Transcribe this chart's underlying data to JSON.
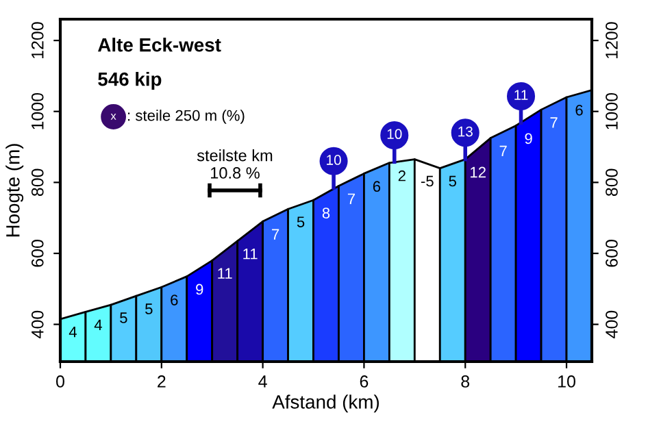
{
  "chart_data": {
    "type": "area",
    "title": "Alte Eck-west",
    "subtitle": "546 kip",
    "xlabel": "Afstand (km)",
    "ylabel": "Hoogte (m)",
    "series": [
      {
        "x": [
          0,
          0.5
        ],
        "values": [
          415,
          435
        ],
        "color": "#66ffff"
      },
      {
        "x": [
          0.5,
          1
        ],
        "values": [
          435,
          455
        ],
        "color": "#62fcfe"
      },
      {
        "x": [
          1,
          1.5
        ],
        "values": [
          455,
          480
        ],
        "color": "#55ccff"
      },
      {
        "x": [
          1.5,
          2
        ],
        "values": [
          480,
          505
        ],
        "color": "#52c8fc"
      },
      {
        "x": [
          2,
          2.5
        ],
        "values": [
          505,
          535
        ],
        "color": "#3d96ff"
      },
      {
        "x": [
          2.5,
          3
        ],
        "values": [
          535,
          580
        ],
        "color": "#0000ff"
      },
      {
        "x": [
          3,
          3.5
        ],
        "values": [
          580,
          635
        ],
        "color": "#22109a"
      },
      {
        "x": [
          3.5,
          4
        ],
        "values": [
          635,
          690
        ],
        "color": "#1a0aaa"
      },
      {
        "x": [
          4,
          4.5
        ],
        "values": [
          690,
          725
        ],
        "color": "#2b64ff"
      },
      {
        "x": [
          4.5,
          5
        ],
        "values": [
          725,
          750
        ],
        "color": "#55ccff"
      },
      {
        "x": [
          5,
          5.5
        ],
        "values": [
          750,
          790
        ],
        "color": "#1a3cff"
      },
      {
        "x": [
          5.5,
          6
        ],
        "values": [
          790,
          825
        ],
        "color": "#2b64ff"
      },
      {
        "x": [
          6,
          6.5
        ],
        "values": [
          825,
          855
        ],
        "color": "#3d96ff"
      },
      {
        "x": [
          6.5,
          7
        ],
        "values": [
          855,
          865
        ],
        "color": "#b0ffff"
      },
      {
        "x": [
          7,
          7.5
        ],
        "values": [
          865,
          840
        ],
        "color": "#ffffff"
      },
      {
        "x": [
          7.5,
          8
        ],
        "values": [
          840,
          865
        ],
        "color": "#55ccff"
      },
      {
        "x": [
          8,
          8.5
        ],
        "values": [
          865,
          925
        ],
        "color": "#2a0080"
      },
      {
        "x": [
          8.5,
          9
        ],
        "values": [
          925,
          960
        ],
        "color": "#2b64ff"
      },
      {
        "x": [
          9,
          9.5
        ],
        "values": [
          960,
          1005
        ],
        "color": "#0000ff"
      },
      {
        "x": [
          9.5,
          10
        ],
        "values": [
          1005,
          1040
        ],
        "color": "#2b64ff"
      },
      {
        "x": [
          10,
          10.5
        ],
        "values": [
          1040,
          1060
        ],
        "color": "#3d96ff"
      }
    ],
    "xlim": [
      0,
      10.5
    ],
    "ylim": [
      295,
      1260
    ],
    "xticks": [
      0,
      2,
      4,
      6,
      8,
      10
    ],
    "yticks": [
      400,
      600,
      800,
      1000,
      1200
    ],
    "y2lim": [
      295,
      1260
    ],
    "y2ticks": [
      400,
      600,
      800,
      1000,
      1200
    ],
    "annotations": [
      "x",
      ": steile 250 m (%)",
      "steilste km",
      "10.8 %",
      "4",
      "4",
      "5",
      "5",
      "6",
      "9",
      "11",
      "11",
      "7",
      "5",
      "8",
      "7",
      "6",
      "2",
      "-5",
      "5",
      "12",
      "7",
      "9",
      "7",
      "6",
      {
        "text": "10",
        "x": 5.4,
        "y": 785
      },
      {
        "text": "10",
        "x": 6.6,
        "y": 858
      },
      {
        "text": "13",
        "x": 8.0,
        "y": 865
      },
      {
        "text": "11",
        "x": 9.1,
        "y": 968
      }
    ]
  }
}
